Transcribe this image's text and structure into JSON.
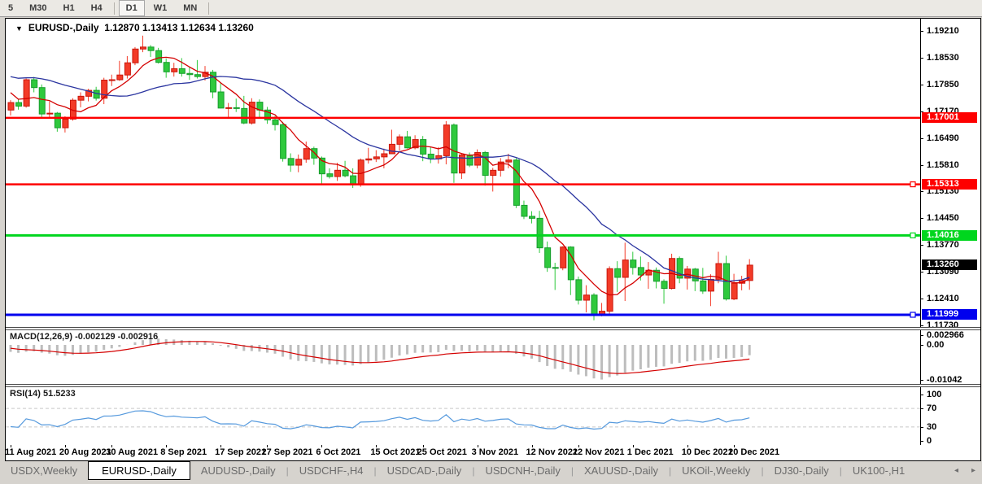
{
  "toolbar": {
    "items": [
      "5",
      "M30",
      "H1",
      "H4",
      "D1",
      "W1",
      "MN"
    ],
    "active": "D1",
    "separators_after": [
      3,
      6
    ]
  },
  "chart": {
    "dropdown_icon": "▼",
    "symbol": "EURUSD-,Daily",
    "ohlc": "1.12870 1.13413 1.12634 1.13260",
    "axis_range": {
      "top": 1.1921,
      "bottom": 1.1173
    },
    "price_axis_ticks": [
      "1.19210",
      "1.18530",
      "1.17850",
      "1.17170",
      "1.16490",
      "1.15810",
      "1.15130",
      "1.14450",
      "1.13770",
      "1.13090",
      "1.12410",
      "1.11730"
    ],
    "hlines": [
      {
        "price": 1.17001,
        "label": "1.17001",
        "color": "#fe0000",
        "text_color": "#ffffff",
        "width": 2.5,
        "handle": false
      },
      {
        "price": 1.15313,
        "label": "1.15313",
        "color": "#fe0000",
        "text_color": "#ffffff",
        "width": 2.5,
        "handle": true
      },
      {
        "price": 1.14016,
        "label": "1.14016",
        "color": "#00d61e",
        "text_color": "#ffffff",
        "width": 3,
        "handle": true
      },
      {
        "price": 1.11999,
        "label": "1.11999",
        "color": "#0000ee",
        "text_color": "#ffffff",
        "width": 3,
        "handle": true
      }
    ],
    "current_price": {
      "value": 1.1326,
      "label": "1.13260",
      "bg": "#000000",
      "text_color": "#ffffff"
    },
    "date_ticks": [
      {
        "i": 0,
        "label": "11 Aug 2021"
      },
      {
        "i": 7,
        "label": "20 Aug 2021"
      },
      {
        "i": 13,
        "label": "30 Aug 2021"
      },
      {
        "i": 20,
        "label": "8 Sep 2021"
      },
      {
        "i": 27,
        "label": "17 Sep 2021"
      },
      {
        "i": 33,
        "label": "27 Sep 2021"
      },
      {
        "i": 40,
        "label": "6 Oct 2021"
      },
      {
        "i": 47,
        "label": "15 Oct 2021"
      },
      {
        "i": 53,
        "label": "25 Oct 2021"
      },
      {
        "i": 60,
        "label": "3 Nov 2021"
      },
      {
        "i": 67,
        "label": "12 Nov 2021"
      },
      {
        "i": 73,
        "label": "22 Nov 2021"
      },
      {
        "i": 80,
        "label": "1 Dec 2021"
      },
      {
        "i": 87,
        "label": "10 Dec 2021"
      },
      {
        "i": 93,
        "label": "20 Dec 2021"
      }
    ],
    "prehistory_closes": [
      1.1858,
      1.185,
      1.1846,
      1.1862,
      1.1866,
      1.1852,
      1.1828,
      1.1795,
      1.179,
      1.1798,
      1.1804,
      1.181,
      1.1778,
      1.177,
      1.1768,
      1.179,
      1.18,
      1.182,
      1.184,
      1.1858,
      1.187,
      1.1862,
      1.1867,
      1.1838,
      1.184,
      1.183,
      1.1788,
      1.176,
      1.1738,
      1.173
    ],
    "candles": [
      [
        1.172,
        1.1745,
        1.1706,
        1.1739
      ],
      [
        1.1739,
        1.1748,
        1.1721,
        1.173
      ],
      [
        1.173,
        1.18,
        1.1726,
        1.1797
      ],
      [
        1.1797,
        1.1804,
        1.1765,
        1.1777
      ],
      [
        1.1777,
        1.1785,
        1.1702,
        1.171
      ],
      [
        1.171,
        1.1742,
        1.17,
        1.1712
      ],
      [
        1.1712,
        1.1715,
        1.1665,
        1.1675
      ],
      [
        1.1675,
        1.1704,
        1.1663,
        1.1697
      ],
      [
        1.1697,
        1.175,
        1.1693,
        1.1745
      ],
      [
        1.1745,
        1.1765,
        1.1727,
        1.1755
      ],
      [
        1.1755,
        1.1774,
        1.1742,
        1.177
      ],
      [
        1.177,
        1.1779,
        1.1744,
        1.175
      ],
      [
        1.175,
        1.1802,
        1.1735,
        1.1796
      ],
      [
        1.1796,
        1.181,
        1.1781,
        1.1797
      ],
      [
        1.1797,
        1.1845,
        1.1794,
        1.1809
      ],
      [
        1.1809,
        1.1857,
        1.18,
        1.184
      ],
      [
        1.184,
        1.188,
        1.1834,
        1.1875
      ],
      [
        1.1875,
        1.1909,
        1.1867,
        1.188
      ],
      [
        1.188,
        1.1885,
        1.1855,
        1.1871
      ],
      [
        1.1871,
        1.1878,
        1.1838,
        1.1841
      ],
      [
        1.1841,
        1.1851,
        1.1802,
        1.1817
      ],
      [
        1.1817,
        1.184,
        1.1805,
        1.1825
      ],
      [
        1.1825,
        1.1852,
        1.1805,
        1.1813
      ],
      [
        1.1813,
        1.183,
        1.1797,
        1.181
      ],
      [
        1.181,
        1.1847,
        1.18,
        1.1805
      ],
      [
        1.1805,
        1.1832,
        1.1795,
        1.1816
      ],
      [
        1.1816,
        1.1822,
        1.175,
        1.1766
      ],
      [
        1.1766,
        1.1788,
        1.1724,
        1.1725
      ],
      [
        1.1725,
        1.1738,
        1.17,
        1.1726
      ],
      [
        1.1726,
        1.1749,
        1.1715,
        1.1724
      ],
      [
        1.1724,
        1.1756,
        1.1684,
        1.1687
      ],
      [
        1.1687,
        1.175,
        1.1683,
        1.174
      ],
      [
        1.174,
        1.1747,
        1.1701,
        1.172
      ],
      [
        1.172,
        1.1728,
        1.1685,
        1.1695
      ],
      [
        1.1695,
        1.1705,
        1.1668,
        1.1683
      ],
      [
        1.1683,
        1.169,
        1.1589,
        1.1597
      ],
      [
        1.1597,
        1.161,
        1.1563,
        1.158
      ],
      [
        1.158,
        1.1607,
        1.1562,
        1.1595
      ],
      [
        1.1595,
        1.164,
        1.1586,
        1.1622
      ],
      [
        1.1622,
        1.1627,
        1.1581,
        1.1598
      ],
      [
        1.1598,
        1.1602,
        1.1529,
        1.1558
      ],
      [
        1.1558,
        1.1572,
        1.1546,
        1.1551
      ],
      [
        1.1551,
        1.1586,
        1.154,
        1.1567
      ],
      [
        1.1567,
        1.1591,
        1.1549,
        1.1553
      ],
      [
        1.1553,
        1.1572,
        1.1522,
        1.153
      ],
      [
        1.153,
        1.1597,
        1.1525,
        1.1593
      ],
      [
        1.1593,
        1.1624,
        1.1584,
        1.1596
      ],
      [
        1.1596,
        1.1618,
        1.1588,
        1.1601
      ],
      [
        1.1601,
        1.1622,
        1.1572,
        1.1609
      ],
      [
        1.1609,
        1.167,
        1.1609,
        1.1633
      ],
      [
        1.1633,
        1.1658,
        1.1617,
        1.1652
      ],
      [
        1.1652,
        1.1667,
        1.1622,
        1.1624
      ],
      [
        1.1624,
        1.1656,
        1.162,
        1.1645
      ],
      [
        1.1645,
        1.1654,
        1.159,
        1.1608
      ],
      [
        1.1608,
        1.1626,
        1.1585,
        1.1596
      ],
      [
        1.1596,
        1.1626,
        1.1584,
        1.1604
      ],
      [
        1.1604,
        1.1692,
        1.1582,
        1.1682
      ],
      [
        1.1682,
        1.1686,
        1.1535,
        1.156
      ],
      [
        1.156,
        1.1609,
        1.1545,
        1.1606
      ],
      [
        1.1606,
        1.1612,
        1.1575,
        1.158
      ],
      [
        1.158,
        1.162,
        1.1572,
        1.1612
      ],
      [
        1.1612,
        1.1616,
        1.1528,
        1.1554
      ],
      [
        1.1554,
        1.1573,
        1.1513,
        1.1567
      ],
      [
        1.1567,
        1.1598,
        1.1551,
        1.1588
      ],
      [
        1.1588,
        1.1609,
        1.1572,
        1.1593
      ],
      [
        1.1593,
        1.1598,
        1.1471,
        1.1478
      ],
      [
        1.1478,
        1.149,
        1.1443,
        1.145
      ],
      [
        1.145,
        1.1463,
        1.1432,
        1.1445
      ],
      [
        1.1445,
        1.1464,
        1.1357,
        1.137
      ],
      [
        1.137,
        1.1386,
        1.1309,
        1.132
      ],
      [
        1.132,
        1.1332,
        1.1263,
        1.1319
      ],
      [
        1.1319,
        1.1374,
        1.1313,
        1.1372
      ],
      [
        1.1372,
        1.1374,
        1.125,
        1.1289
      ],
      [
        1.1289,
        1.1297,
        1.1226,
        1.1237
      ],
      [
        1.1237,
        1.1275,
        1.1206,
        1.125
      ],
      [
        1.125,
        1.1255,
        1.1186,
        1.12
      ],
      [
        1.12,
        1.123,
        1.1196,
        1.1209
      ],
      [
        1.1209,
        1.1323,
        1.1203,
        1.1317
      ],
      [
        1.1317,
        1.1336,
        1.1258,
        1.1295
      ],
      [
        1.1295,
        1.1383,
        1.1235,
        1.1339
      ],
      [
        1.1339,
        1.136,
        1.1302,
        1.132
      ],
      [
        1.132,
        1.1348,
        1.1287,
        1.1301
      ],
      [
        1.1301,
        1.1334,
        1.1266,
        1.1313
      ],
      [
        1.1313,
        1.132,
        1.1267,
        1.1285
      ],
      [
        1.1285,
        1.129,
        1.1228,
        1.1267
      ],
      [
        1.1267,
        1.1355,
        1.1264,
        1.1343
      ],
      [
        1.1343,
        1.1348,
        1.128,
        1.1293
      ],
      [
        1.1293,
        1.1324,
        1.1264,
        1.1316
      ],
      [
        1.1316,
        1.1319,
        1.126,
        1.1286
      ],
      [
        1.1286,
        1.1319,
        1.1253,
        1.126
      ],
      [
        1.126,
        1.1303,
        1.1222,
        1.129
      ],
      [
        1.129,
        1.136,
        1.128,
        1.133
      ],
      [
        1.133,
        1.135,
        1.1236,
        1.124
      ],
      [
        1.124,
        1.1304,
        1.1237,
        1.128
      ],
      [
        1.128,
        1.1299,
        1.1262,
        1.1287
      ],
      [
        1.1287,
        1.13413,
        1.12634,
        1.1326
      ]
    ]
  },
  "macd": {
    "label": "MACD(12,26,9) -0.002129 -0.002916",
    "fast": 12,
    "slow": 26,
    "signal": 9,
    "axis_ticks": [
      {
        "v": 0.002966,
        "label": "0.002966"
      },
      {
        "v": 0.0,
        "label": "0.00"
      },
      {
        "v": -0.01042,
        "label": "-0.01042"
      }
    ]
  },
  "rsi": {
    "label": "RSI(14) 51.5233",
    "period": 14,
    "levels": [
      70,
      30
    ],
    "axis_ticks": [
      {
        "v": 100,
        "label": "100"
      },
      {
        "v": 70,
        "label": "70"
      },
      {
        "v": 30,
        "label": "30"
      },
      {
        "v": 0,
        "label": "0"
      }
    ]
  },
  "tabs": {
    "items": [
      "USDX,Weekly",
      "EURUSD-,Daily",
      "AUDUSD-,Daily",
      "USDCHF-,H4",
      "USDCAD-,Daily",
      "USDCNH-,Daily",
      "XAUUSD-,Daily",
      "UKOil-,Weekly",
      "DJ30-,Daily",
      "UK100-,H1"
    ],
    "active": "EURUSD-,Daily",
    "scroll_left": "◂",
    "scroll_right": "▸"
  },
  "colors": {
    "bull": "#f33b28",
    "bull_border": "#c9170b",
    "bear": "#2fc93d",
    "bear_border": "#169c2c",
    "ma_fast": "#d40000",
    "ma_slow": "#2b35a0",
    "macd_hist": "#bdbdbd",
    "macd_signal": "#d40000",
    "rsi_line": "#5599dd",
    "level_dash": "#c8c8c8"
  }
}
